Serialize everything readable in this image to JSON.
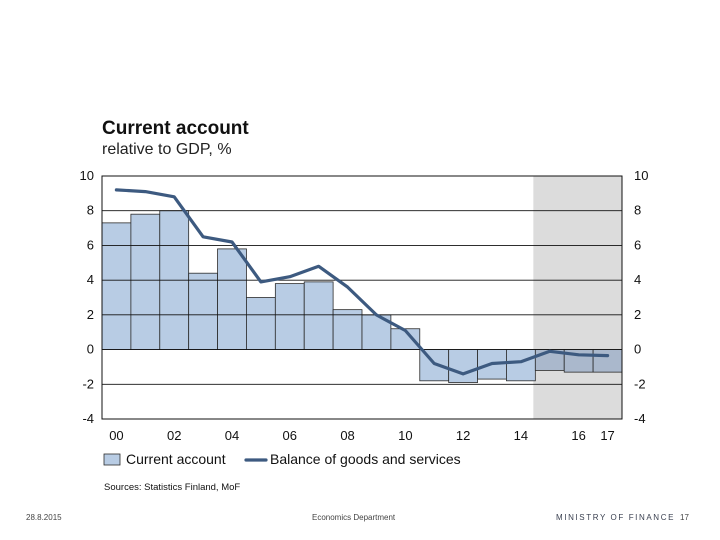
{
  "header": {
    "title": "Current account",
    "subtitle": "relative to GDP, %"
  },
  "chart_data": {
    "type": "bar",
    "title": "Current account",
    "subtitle": "relative to GDP, %",
    "categories": [
      "2000",
      "2001",
      "2002",
      "2003",
      "2004",
      "2005",
      "2006",
      "2007",
      "2008",
      "2009",
      "2010",
      "2011",
      "2012",
      "2013",
      "2014",
      "2015",
      "2016",
      "2017"
    ],
    "x_tick_labels": [
      "00",
      "02",
      "04",
      "06",
      "08",
      "10",
      "12",
      "14",
      "16",
      "17"
    ],
    "x_tick_categories": [
      "2000",
      "2002",
      "2004",
      "2006",
      "2008",
      "2010",
      "2012",
      "2014",
      "2016",
      "2017"
    ],
    "y_ticks": [
      "10",
      "8",
      "6",
      "4",
      "2",
      "0",
      "-2",
      "-4"
    ],
    "ylim": [
      -4,
      10
    ],
    "forecast_from": "2015",
    "series": [
      {
        "name": "Current account",
        "kind": "bar",
        "values": [
          7.3,
          7.8,
          8.0,
          4.4,
          5.8,
          3.0,
          3.8,
          3.9,
          2.3,
          2.0,
          1.2,
          -1.8,
          -1.9,
          -1.7,
          -1.8,
          -1.2,
          -1.3,
          -1.3
        ],
        "color": "#b8cce4"
      },
      {
        "name": "Balance of goods and services",
        "kind": "line",
        "values": [
          9.2,
          9.1,
          8.8,
          6.5,
          6.2,
          3.9,
          4.2,
          4.8,
          3.6,
          2.0,
          1.1,
          -0.8,
          -1.4,
          -0.8,
          -0.7,
          -0.1,
          -0.3,
          -0.35
        ],
        "color": "#3d5a80"
      }
    ],
    "legend": [
      "Current account",
      "Balance of goods and services"
    ],
    "grid": true
  },
  "source": "Sources: Statistics Finland, MoF",
  "footer": {
    "date": "28.8.2015",
    "department": "Economics Department",
    "ministry": "MINISTRY OF FINANCE",
    "page": "17"
  }
}
